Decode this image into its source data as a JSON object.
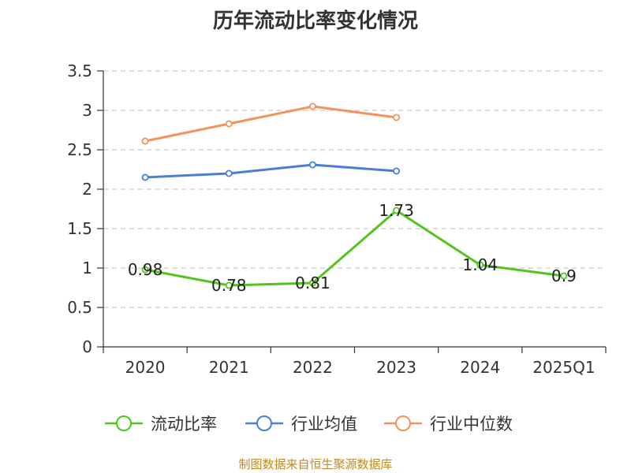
{
  "chart_data": {
    "type": "line",
    "title": "历年流动比率变化情况",
    "categories": [
      "2020",
      "2021",
      "2022",
      "2023",
      "2024",
      "2025Q1"
    ],
    "ylim": [
      0,
      3.5
    ],
    "yticks": [
      0,
      0.5,
      1,
      1.5,
      2,
      2.5,
      3,
      3.5
    ],
    "ytick_labels": [
      "0",
      "0.5",
      "1",
      "1.5",
      "2",
      "2.5",
      "3",
      "3.5"
    ],
    "grid": true,
    "legend_position": "bottom",
    "series": [
      {
        "name": "流动比率",
        "color": "#52c41a",
        "values": [
          0.98,
          0.78,
          0.81,
          1.73,
          1.04,
          0.9
        ],
        "labels": [
          "0.98",
          "0.78",
          "0.81",
          "1.73",
          "1.04",
          "0.9"
        ]
      },
      {
        "name": "行业均值",
        "color": "#4a7fd9",
        "values": [
          2.15,
          2.2,
          2.31,
          2.23,
          null,
          null
        ]
      },
      {
        "name": "行业中位数",
        "color": "#f5915a",
        "values": [
          2.61,
          2.83,
          3.05,
          2.91,
          null,
          null
        ]
      }
    ]
  },
  "source": "制图数据来自恒生聚源数据库"
}
